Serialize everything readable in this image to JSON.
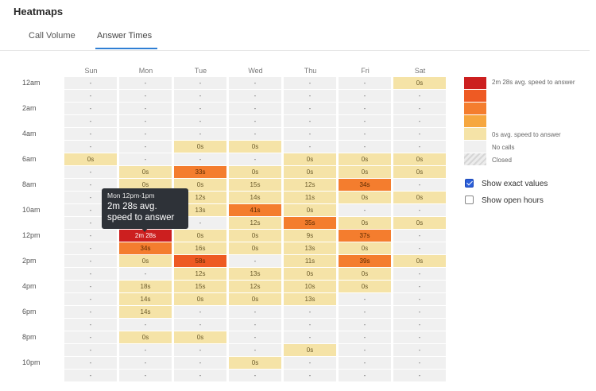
{
  "page_title": "Heatmaps",
  "tabs": [
    {
      "label": "Call Volume",
      "active": false
    },
    {
      "label": "Answer Times",
      "active": true
    }
  ],
  "accent_color": "#2f7fd4",
  "days": [
    "Sun",
    "Mon",
    "Tue",
    "Wed",
    "Thu",
    "Fri",
    "Sat"
  ],
  "time_labels": [
    "12am",
    "2am",
    "4am",
    "6am",
    "8am",
    "10am",
    "12pm",
    "2pm",
    "4pm",
    "6pm",
    "8pm",
    "10pm"
  ],
  "grid": [
    [
      "-",
      "-",
      "-",
      "-",
      "-",
      "-",
      "0s"
    ],
    [
      "-",
      "-",
      "-",
      "-",
      "-",
      "-",
      "-"
    ],
    [
      "-",
      "-",
      "-",
      "-",
      "-",
      "-",
      "-"
    ],
    [
      "-",
      "-",
      "-",
      "-",
      "-",
      "-",
      "-"
    ],
    [
      "-",
      "-",
      "-",
      "-",
      "-",
      "-",
      "-"
    ],
    [
      "-",
      "-",
      "0s",
      "0s",
      "-",
      "-",
      "-"
    ],
    [
      "0s",
      "-",
      "-",
      "-",
      "0s",
      "0s",
      "0s"
    ],
    [
      "-",
      "0s",
      "33s",
      "0s",
      "0s",
      "0s",
      "0s"
    ],
    [
      "-",
      "0s",
      "0s",
      "15s",
      "12s",
      "34s",
      "-"
    ],
    [
      "-",
      "-",
      "12s",
      "14s",
      "11s",
      "0s",
      "0s"
    ],
    [
      "-",
      "-",
      "13s",
      "41s",
      "0s",
      "-",
      "-"
    ],
    [
      "-",
      "-",
      "-",
      "12s",
      "35s",
      "0s",
      "0s"
    ],
    [
      "-",
      "2m 28s",
      "0s",
      "0s",
      "9s",
      "37s",
      "-"
    ],
    [
      "-",
      "34s",
      "16s",
      "0s",
      "13s",
      "0s",
      "-"
    ],
    [
      "-",
      "0s",
      "58s",
      "-",
      "11s",
      "39s",
      "0s"
    ],
    [
      "-",
      "-",
      "12s",
      "13s",
      "0s",
      "0s",
      "-"
    ],
    [
      "-",
      "18s",
      "15s",
      "12s",
      "10s",
      "0s",
      "-"
    ],
    [
      "-",
      "14s",
      "0s",
      "0s",
      "13s",
      "-",
      "-"
    ],
    [
      "-",
      "14s",
      "-",
      "-",
      "-",
      "-",
      "-"
    ],
    [
      "-",
      "-",
      "-",
      "-",
      "-",
      "-",
      "-"
    ],
    [
      "-",
      "0s",
      "0s",
      "-",
      "-",
      "-",
      "-"
    ],
    [
      "-",
      "-",
      "-",
      "-",
      "0s",
      "-",
      "-"
    ],
    [
      "-",
      "-",
      "-",
      "0s",
      "-",
      "-",
      "-"
    ],
    [
      "-",
      "-",
      "-",
      "-",
      "-",
      "-",
      "-"
    ]
  ],
  "colors": {
    "no_calls": "#f0f0f0",
    "scale": [
      "#f5e3a7",
      "#f7c46a",
      "#f6a73f",
      "#f47d2e",
      "#ee5a23",
      "#cc1f1f"
    ]
  },
  "tooltip": {
    "title": "Mon 12pm-1pm",
    "body": "2m 28s avg. speed to answer"
  },
  "legend": {
    "max_label": "2m 28s avg. speed to answer",
    "min_label": "0s avg. speed to answer",
    "no_calls_label": "No calls",
    "closed_label": "Closed"
  },
  "options": {
    "show_exact_values": {
      "label": "Show exact values",
      "checked": true
    },
    "show_open_hours": {
      "label": "Show open hours",
      "checked": false
    }
  }
}
